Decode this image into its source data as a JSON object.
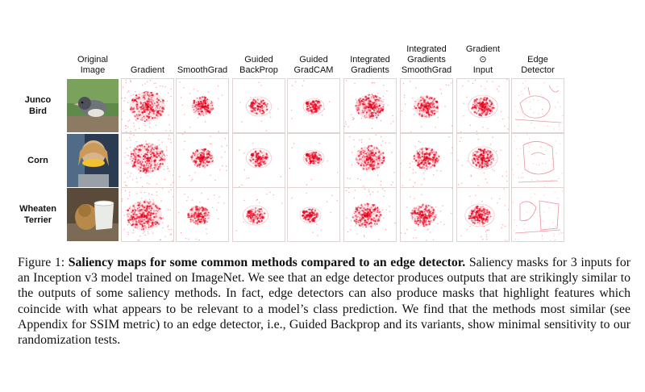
{
  "figure": {
    "columns": [
      "Original\nImage",
      "Gradient",
      "SmoothGrad",
      "Guided\nBackProp",
      "Guided\nGradCAM",
      "Integrated\nGradients",
      "Integrated\nGradients\nSmoothGrad",
      "Gradient\n⊙\nInput",
      "Edge\nDetector"
    ],
    "rows": [
      "Junco\nBird",
      "Corn",
      "Wheaten\nTerrier"
    ],
    "heatmap_color": "#e8001c",
    "photo_subjects": [
      "junco-bird-photo",
      "girl-with-corn-photo",
      "terrier-with-bucket-photo"
    ]
  },
  "caption": {
    "label": "Figure 1:",
    "title": "Saliency maps for some common methods compared to an edge detector.",
    "body": "Saliency masks for 3 inputs for an Inception v3 model trained on ImageNet. We see that an edge detector produces outputs that are strikingly similar to the outputs of some saliency methods. In fact, edge detectors can also produce masks that highlight features which coincide with what appears to be relevant to a model’s class prediction. We find that the methods most similar (see Appendix for SSIM metric) to an edge detector, i.e., Guided Backprop and its variants, show minimal sensitivity to our randomization tests."
  }
}
